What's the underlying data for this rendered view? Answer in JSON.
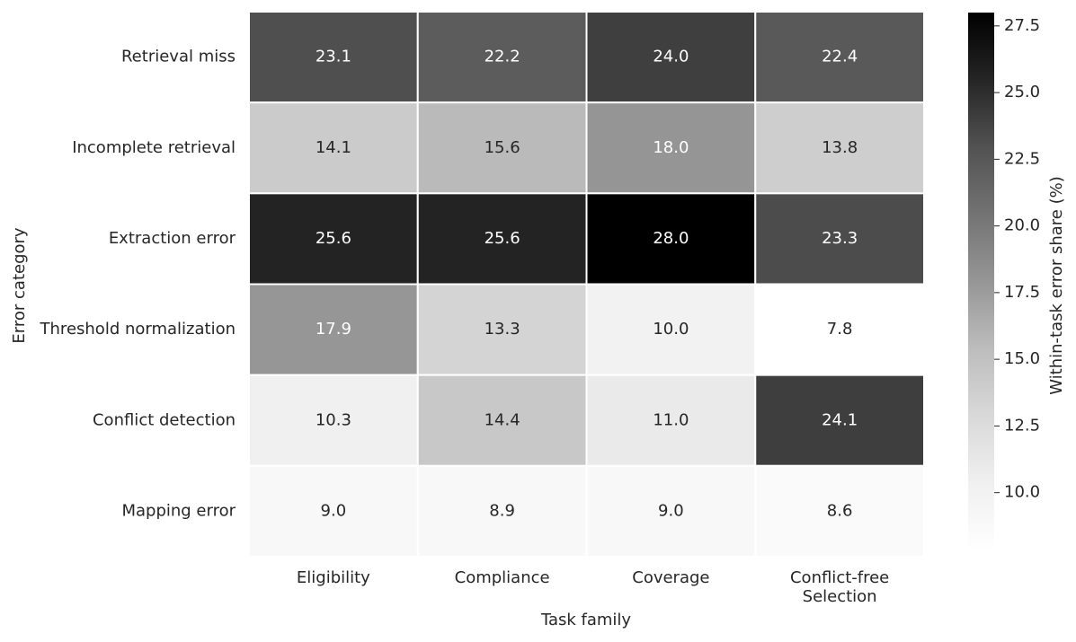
{
  "chart_data": {
    "type": "heatmap",
    "xlabel": "Task family",
    "ylabel": "Error category",
    "categories": [
      "Eligibility",
      "Compliance",
      "Coverage",
      "Conflict-free Selection"
    ],
    "rows": [
      "Retrieval miss",
      "Incomplete retrieval",
      "Extraction error",
      "Threshold normalization",
      "Conflict detection",
      "Mapping error"
    ],
    "values": [
      [
        23.1,
        22.2,
        24.0,
        22.4
      ],
      [
        14.1,
        15.6,
        18.0,
        13.8
      ],
      [
        25.6,
        25.6,
        28.0,
        23.3
      ],
      [
        17.9,
        13.3,
        10.0,
        7.8
      ],
      [
        10.3,
        14.4,
        11.0,
        24.1
      ],
      [
        9.0,
        8.9,
        9.0,
        8.6
      ]
    ],
    "value_labels": [
      [
        "23.1",
        "22.2",
        "24.0",
        "22.4"
      ],
      [
        "14.1",
        "15.6",
        "18.0",
        "13.8"
      ],
      [
        "25.6",
        "25.6",
        "28.0",
        "23.3"
      ],
      [
        "17.9",
        "13.3",
        "10.0",
        "7.8"
      ],
      [
        "10.3",
        "14.4",
        "11.0",
        "24.1"
      ],
      [
        "9.0",
        "8.9",
        "9.0",
        "8.6"
      ]
    ],
    "colormap": "Greys",
    "colorbar_label": "Within-task error share (%)",
    "clim": [
      7.8,
      28.0
    ],
    "cticks": [
      {
        "value": 10,
        "label": "10.0"
      },
      12.5,
      {
        "value": 15,
        "label": "15.0"
      },
      17.5,
      {
        "value": 20,
        "label": "20.0"
      },
      22.5,
      {
        "value": 25,
        "label": "25.0"
      },
      27.5
    ]
  }
}
